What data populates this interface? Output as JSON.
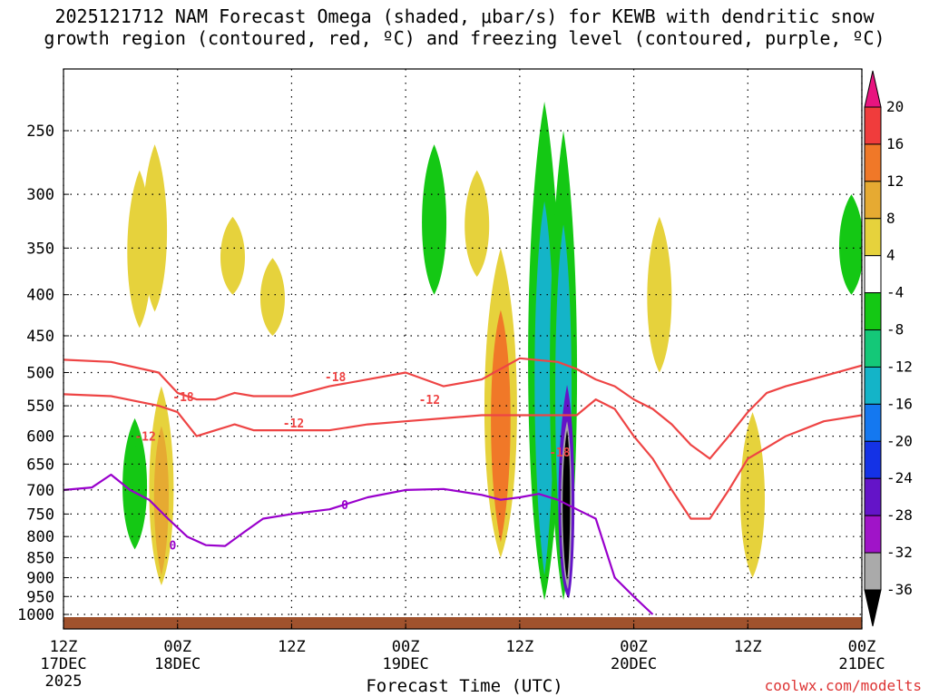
{
  "title": {
    "line1": "2025121712 NAM Forecast Omega (shaded, μbar/s) for KEWB with dendritic snow",
    "line2": "growth region (contoured, red, ºC) and freezing level (contoured, purple, ºC)"
  },
  "chart_data": {
    "type": "heatmap",
    "xlabel": "Forecast Time (UTC)",
    "ylabel": "",
    "x_ticks": [
      {
        "label": "12Z",
        "sub": "17DEC",
        "sub2": "2025",
        "hours": 0
      },
      {
        "label": "00Z",
        "sub": "18DEC",
        "hours": 12
      },
      {
        "label": "12Z",
        "sub": "",
        "hours": 24
      },
      {
        "label": "00Z",
        "sub": "19DEC",
        "hours": 36
      },
      {
        "label": "12Z",
        "sub": "",
        "hours": 48
      },
      {
        "label": "00Z",
        "sub": "20DEC",
        "hours": 60
      },
      {
        "label": "12Z",
        "sub": "",
        "hours": 72
      },
      {
        "label": "00Z",
        "sub": "21DEC",
        "hours": 84
      }
    ],
    "xlim_hours": [
      0,
      84
    ],
    "y_ticks": [
      250,
      300,
      350,
      400,
      450,
      500,
      550,
      600,
      650,
      700,
      750,
      800,
      850,
      900,
      950,
      1000
    ],
    "ylim_hpa": [
      1030,
      200
    ],
    "colorbar": {
      "labels": [
        "20",
        "16",
        "12",
        "8",
        "4",
        "-4",
        "-8",
        "-12",
        "-16",
        "-20",
        "-24",
        "-28",
        "-32",
        "-36"
      ],
      "colors": [
        "#e8147f",
        "#f03c3c",
        "#f07828",
        "#e6aa32",
        "#e6d23c",
        "#ffffff",
        "#14c814",
        "#14c878",
        "#14b4c8",
        "#1478f0",
        "#1432e6",
        "#6414c8",
        "#a014c8",
        "#aaaaaa",
        "#000000"
      ]
    },
    "contours": {
      "dendritic": [
        {
          "label": "-12",
          "points": [
            [
              0,
              532
            ],
            [
              5,
              535
            ],
            [
              10,
              550
            ],
            [
              12,
              560
            ],
            [
              14,
              600
            ],
            [
              16,
              590
            ],
            [
              18,
              580
            ],
            [
              20,
              590
            ],
            [
              24,
              590
            ],
            [
              28,
              590
            ],
            [
              32,
              580
            ],
            [
              36,
              575
            ],
            [
              40,
              570
            ],
            [
              44,
              565
            ],
            [
              48,
              565
            ],
            [
              52,
              565
            ],
            [
              54,
              565
            ],
            [
              56,
              540
            ],
            [
              58,
              555
            ],
            [
              60,
              600
            ],
            [
              62,
              640
            ],
            [
              64,
              700
            ],
            [
              66,
              760
            ],
            [
              68,
              760
            ],
            [
              70,
              700
            ],
            [
              72,
              640
            ],
            [
              74,
              620
            ],
            [
              76,
              600
            ],
            [
              80,
              575
            ],
            [
              84,
              565
            ]
          ]
        },
        {
          "label": "-18",
          "points": [
            [
              0,
              482
            ],
            [
              5,
              485
            ],
            [
              10,
              500
            ],
            [
              12,
              530
            ],
            [
              14,
              540
            ],
            [
              16,
              540
            ],
            [
              18,
              530
            ],
            [
              20,
              535
            ],
            [
              24,
              535
            ],
            [
              28,
              520
            ],
            [
              32,
              510
            ],
            [
              36,
              500
            ],
            [
              40,
              520
            ],
            [
              44,
              510
            ],
            [
              48,
              480
            ],
            [
              52,
              485
            ],
            [
              54,
              495
            ],
            [
              56,
              510
            ],
            [
              58,
              520
            ],
            [
              60,
              540
            ],
            [
              62,
              555
            ],
            [
              64,
              580
            ],
            [
              66,
              615
            ],
            [
              68,
              640
            ],
            [
              70,
              600
            ],
            [
              72,
              560
            ],
            [
              74,
              530
            ],
            [
              76,
              520
            ],
            [
              80,
              505
            ],
            [
              84,
              490
            ]
          ]
        }
      ],
      "freezing": {
        "label": "0",
        "points": [
          [
            0,
            700
          ],
          [
            3,
            695
          ],
          [
            5,
            670
          ],
          [
            7,
            700
          ],
          [
            9,
            720
          ],
          [
            11,
            760
          ],
          [
            13,
            800
          ],
          [
            15,
            820
          ],
          [
            17,
            822
          ],
          [
            19,
            790
          ],
          [
            21,
            760
          ],
          [
            24,
            750
          ],
          [
            28,
            740
          ],
          [
            32,
            715
          ],
          [
            36,
            700
          ],
          [
            40,
            698
          ],
          [
            44,
            710
          ],
          [
            46,
            720
          ],
          [
            48,
            715
          ],
          [
            50,
            708
          ],
          [
            52,
            720
          ],
          [
            54,
            740
          ],
          [
            56,
            760
          ],
          [
            58,
            900
          ],
          [
            60,
            950
          ],
          [
            62,
            1000
          ]
        ]
      },
      "contour_labels": [
        {
          "text": "-18",
          "type": "red",
          "hours": 12.6,
          "hpa": 536
        },
        {
          "text": "-12",
          "type": "red",
          "hours": 8.6,
          "hpa": 600
        },
        {
          "text": "-18",
          "type": "red",
          "hours": 28.6,
          "hpa": 506
        },
        {
          "text": "-12",
          "type": "red",
          "hours": 24.2,
          "hpa": 578
        },
        {
          "text": "-12",
          "type": "red",
          "hours": 38.5,
          "hpa": 540
        },
        {
          "text": "-18",
          "type": "red",
          "hours": 52.2,
          "hpa": 628
        },
        {
          "text": "0",
          "type": "purple",
          "hours": 11.5,
          "hpa": 820
        },
        {
          "text": "0",
          "type": "purple",
          "hours": 29.6,
          "hpa": 730
        }
      ]
    },
    "omega_features": [
      {
        "hours": 8,
        "hpa_top": 280,
        "hpa_bot": 440,
        "value": 4
      },
      {
        "hours": 9.6,
        "hpa_top": 260,
        "hpa_bot": 420,
        "value": 4
      },
      {
        "hours": 17.8,
        "hpa_top": 320,
        "hpa_bot": 400,
        "value": 4
      },
      {
        "hours": 22,
        "hpa_top": 360,
        "hpa_bot": 450,
        "value": 4
      },
      {
        "hours": 7.5,
        "hpa_top": 570,
        "hpa_bot": 830,
        "value": -8
      },
      {
        "hours": 10.3,
        "hpa_top": 520,
        "hpa_bot": 920,
        "value": 8
      },
      {
        "hours": 39,
        "hpa_top": 260,
        "hpa_bot": 400,
        "value": -8
      },
      {
        "hours": 43.5,
        "hpa_top": 280,
        "hpa_bot": 380,
        "value": 4
      },
      {
        "hours": 46,
        "hpa_top": 350,
        "hpa_bot": 850,
        "value": 12
      },
      {
        "hours": 50.6,
        "hpa_top": 230,
        "hpa_bot": 960,
        "value": -16
      },
      {
        "hours": 52.6,
        "hpa_top": 250,
        "hpa_bot": 960,
        "value": -36
      },
      {
        "hours": 62.7,
        "hpa_top": 320,
        "hpa_bot": 500,
        "value": 4
      },
      {
        "hours": 72.5,
        "hpa_top": 560,
        "hpa_bot": 900,
        "value": 4
      },
      {
        "hours": 82.9,
        "hpa_top": 300,
        "hpa_bot": 400,
        "value": -8
      }
    ]
  },
  "credit": "coolwx.com/modelts",
  "colors": {
    "dendritic": "#ee4444",
    "freezing": "#9900cc",
    "ground": "#a0522d",
    "grid": "#000000"
  }
}
